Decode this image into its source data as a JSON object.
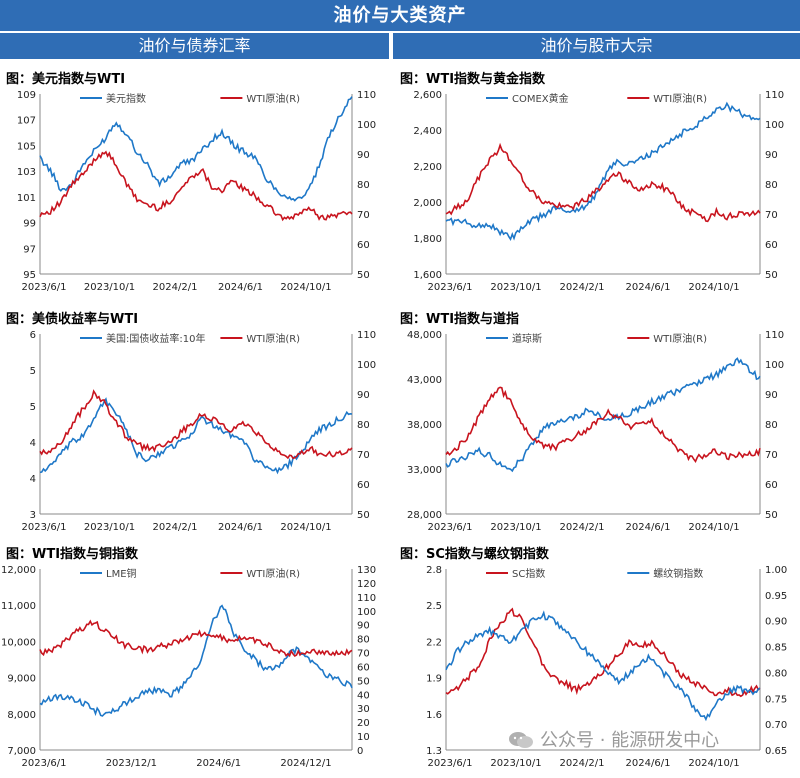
{
  "header": {
    "title": "油价与大类资产",
    "left_section": "油价与债券汇率",
    "right_section": "油价与股市大宗"
  },
  "watermark": "公众号 · 能源研发中心",
  "colors": {
    "blue": "#1f78c8",
    "red": "#c8141e",
    "banner": "#2f6db5"
  },
  "panels": [
    {
      "title": "图：美元指数与WTI"
    },
    {
      "title": "图：WTI指数与黄金指数"
    },
    {
      "title": "图：美债收益率与WTI"
    },
    {
      "title": "图：WTI指数与道指"
    },
    {
      "title": "图：WTI指数与铜指数"
    },
    {
      "title": "图：SC指数与螺纹钢指数"
    }
  ],
  "chart_data": [
    {
      "type": "line",
      "title": "图：美元指数与WTI",
      "x_ticks": [
        "2023/6/1",
        "2023/10/1",
        "2024/2/1",
        "2024/6/1",
        "2024/10/1"
      ],
      "ylim": [
        95,
        109
      ],
      "y_ticks": [
        "95",
        "97",
        "99",
        "101",
        "103",
        "105",
        "107",
        "109"
      ],
      "y2lim": [
        50,
        110
      ],
      "y2_ticks": [
        "50",
        "60",
        "70",
        "80",
        "90",
        "100",
        "110"
      ],
      "legend": "top",
      "series": [
        {
          "name": "美元指数",
          "color": "#1f78c8",
          "axis": "left",
          "values": [
            104.0,
            103.0,
            101.5,
            102.0,
            103.5,
            104.5,
            105.5,
            106.8,
            106.0,
            104.5,
            103.5,
            102.0,
            102.5,
            103.5,
            103.8,
            104.5,
            105.5,
            106.0,
            105.0,
            104.5,
            104.0,
            102.5,
            101.5,
            101.0,
            100.8,
            101.5,
            103.5,
            106.0,
            107.5,
            109.0
          ]
        },
        {
          "name": "WTI原油(R)",
          "color": "#c8141e",
          "axis": "right",
          "values": [
            70,
            71,
            74,
            80,
            83,
            88,
            91,
            87,
            80,
            75,
            73,
            72,
            74,
            78,
            82,
            85,
            79,
            78,
            81,
            78,
            76,
            73,
            70,
            68,
            70,
            72,
            69,
            69,
            70,
            71
          ]
        }
      ]
    },
    {
      "type": "line",
      "title": "图：WTI指数与黄金指数",
      "x_ticks": [
        "2023/6/1",
        "2023/10/1",
        "2024/2/1",
        "2024/6/1",
        "2024/10/1"
      ],
      "ylim": [
        1600,
        2800
      ],
      "y_ticks": [
        "1,600",
        "1,800",
        "2,000",
        "2,200",
        "2,400",
        "2,600"
      ],
      "y2lim": [
        50,
        110
      ],
      "y2_ticks": [
        "50",
        "60",
        "70",
        "80",
        "90",
        "100",
        "110"
      ],
      "legend": "top",
      "series": [
        {
          "name": "COMEX黄金",
          "color": "#1f78c8",
          "axis": "left",
          "values": [
            1960,
            1950,
            1940,
            1920,
            1930,
            1880,
            1840,
            1900,
            1960,
            1990,
            2040,
            2020,
            2030,
            2050,
            2150,
            2300,
            2350,
            2330,
            2370,
            2400,
            2450,
            2500,
            2550,
            2580,
            2650,
            2700,
            2720,
            2680,
            2640,
            2630
          ]
        },
        {
          "name": "WTI原油(R)",
          "color": "#c8141e",
          "axis": "right",
          "values": [
            70,
            72,
            75,
            82,
            88,
            92,
            88,
            82,
            77,
            74,
            73,
            72,
            73,
            75,
            78,
            82,
            83,
            80,
            78,
            80,
            79,
            76,
            72,
            70,
            68,
            71,
            69,
            70,
            70,
            71
          ]
        }
      ]
    },
    {
      "type": "line",
      "title": "图：美债收益率与WTI",
      "x_ticks": [
        "2023/6/1",
        "2023/10/1",
        "2024/2/1",
        "2024/6/1",
        "2024/10/1"
      ],
      "ylim": [
        3.0,
        6.0
      ],
      "y_ticks": [
        "3",
        "4",
        "4",
        "5",
        "5",
        "6"
      ],
      "y2lim": [
        50,
        110
      ],
      "y2_ticks": [
        "50",
        "60",
        "70",
        "80",
        "90",
        "100",
        "110"
      ],
      "legend": "top",
      "series": [
        {
          "name": "美国:国债收益率:10年",
          "color": "#1f78c8",
          "axis": "left",
          "values": [
            3.7,
            3.8,
            4.0,
            4.2,
            4.3,
            4.6,
            4.9,
            4.7,
            4.4,
            4.0,
            3.9,
            4.0,
            4.1,
            4.2,
            4.3,
            4.6,
            4.5,
            4.4,
            4.3,
            4.2,
            3.9,
            3.8,
            3.7,
            3.8,
            4.0,
            4.2,
            4.4,
            4.5,
            4.6,
            4.7
          ]
        },
        {
          "name": "WTI原油(R)",
          "color": "#c8141e",
          "axis": "right",
          "values": [
            70,
            71,
            74,
            80,
            85,
            90,
            87,
            81,
            76,
            73,
            72,
            72,
            74,
            77,
            80,
            83,
            82,
            79,
            78,
            80,
            77,
            74,
            71,
            69,
            70,
            72,
            70,
            70,
            70,
            71
          ]
        }
      ]
    },
    {
      "type": "line",
      "title": "图：WTI指数与道指",
      "x_ticks": [
        "2023/6/1",
        "2023/10/1",
        "2024/2/1",
        "2024/6/1",
        "2024/10/1"
      ],
      "ylim": [
        28000,
        48000
      ],
      "y_ticks": [
        "28,000",
        "33,000",
        "38,000",
        "43,000",
        "48,000"
      ],
      "y2lim": [
        50,
        110
      ],
      "y2_ticks": [
        "50",
        "60",
        "70",
        "80",
        "90",
        "100",
        "110"
      ],
      "legend": "top",
      "series": [
        {
          "name": "道琼斯",
          "color": "#1f78c8",
          "axis": "left",
          "values": [
            33500,
            34000,
            34500,
            35000,
            34500,
            33500,
            33000,
            34000,
            36000,
            37500,
            38000,
            38500,
            38800,
            39500,
            39000,
            38500,
            38800,
            39200,
            39800,
            40500,
            41000,
            41500,
            42000,
            42500,
            43000,
            43500,
            44500,
            45000,
            44000,
            43000
          ]
        },
        {
          "name": "WTI原油(R)",
          "color": "#c8141e",
          "axis": "right",
          "values": [
            70,
            72,
            76,
            82,
            88,
            92,
            87,
            80,
            75,
            73,
            72,
            74,
            76,
            78,
            81,
            84,
            82,
            79,
            80,
            81,
            77,
            73,
            70,
            68,
            70,
            71,
            69,
            70,
            70,
            71
          ]
        }
      ]
    },
    {
      "type": "line",
      "title": "图：WTI指数与铜指数",
      "x_ticks": [
        "2023/6/1",
        "2023/12/1",
        "2024/6/1",
        "2024/12/1"
      ],
      "ylim": [
        7000,
        12000
      ],
      "y_ticks": [
        "7,000",
        "8,000",
        "9,000",
        "10,000",
        "11,000",
        "12,000"
      ],
      "y2lim": [
        0,
        130
      ],
      "y2_ticks": [
        "0",
        "10",
        "20",
        "30",
        "40",
        "50",
        "60",
        "70",
        "80",
        "90",
        "100",
        "110",
        "120",
        "130"
      ],
      "legend": "top",
      "series": [
        {
          "name": "LME铜",
          "color": "#1f78c8",
          "axis": "left",
          "values": [
            8300,
            8400,
            8500,
            8400,
            8300,
            8100,
            8000,
            8100,
            8300,
            8500,
            8600,
            8700,
            8500,
            8700,
            9000,
            9500,
            10500,
            11000,
            10200,
            9800,
            9500,
            9200,
            9300,
            9600,
            9800,
            9500,
            9200,
            9000,
            8900,
            8800
          ]
        },
        {
          "name": "WTI原油(R)",
          "color": "#c8141e",
          "axis": "right",
          "values": [
            70,
            72,
            76,
            83,
            88,
            92,
            86,
            80,
            75,
            73,
            72,
            74,
            76,
            78,
            81,
            84,
            82,
            80,
            78,
            81,
            79,
            76,
            72,
            69,
            70,
            71,
            69,
            70,
            70,
            71
          ]
        }
      ]
    },
    {
      "type": "line",
      "title": "图：SC指数与螺纹钢指数",
      "x_ticks": [
        "2023/6/1",
        "2023/10/1",
        "2024/2/1",
        "2024/6/1",
        "2024/10/1"
      ],
      "ylim": [
        1.3,
        2.8
      ],
      "y_ticks": [
        "1.3",
        "1.6",
        "1.9",
        "2.2",
        "2.5",
        "2.8"
      ],
      "y2lim": [
        0.65,
        1.0
      ],
      "y2_ticks": [
        "0.65",
        "0.70",
        "0.75",
        "0.80",
        "0.85",
        "0.90",
        "0.95",
        "1.00"
      ],
      "legend": "top",
      "series": [
        {
          "name": "SC指数",
          "color": "#c8141e",
          "axis": "left",
          "values": [
            1.75,
            1.8,
            1.9,
            2.0,
            2.2,
            2.35,
            2.45,
            2.4,
            2.2,
            2.0,
            1.9,
            1.85,
            1.8,
            1.85,
            1.9,
            2.0,
            2.1,
            2.2,
            2.15,
            2.2,
            2.1,
            2.0,
            1.9,
            1.85,
            1.8,
            1.75,
            1.8,
            1.75,
            1.8,
            1.82
          ]
        },
        {
          "name": "螺纹钢指数",
          "color": "#1f78c8",
          "axis": "right",
          "values": [
            0.8,
            0.84,
            0.86,
            0.87,
            0.88,
            0.87,
            0.86,
            0.88,
            0.9,
            0.91,
            0.9,
            0.88,
            0.86,
            0.84,
            0.82,
            0.8,
            0.78,
            0.8,
            0.82,
            0.83,
            0.8,
            0.78,
            0.76,
            0.73,
            0.71,
            0.74,
            0.76,
            0.77,
            0.76,
            0.77
          ]
        }
      ]
    }
  ]
}
